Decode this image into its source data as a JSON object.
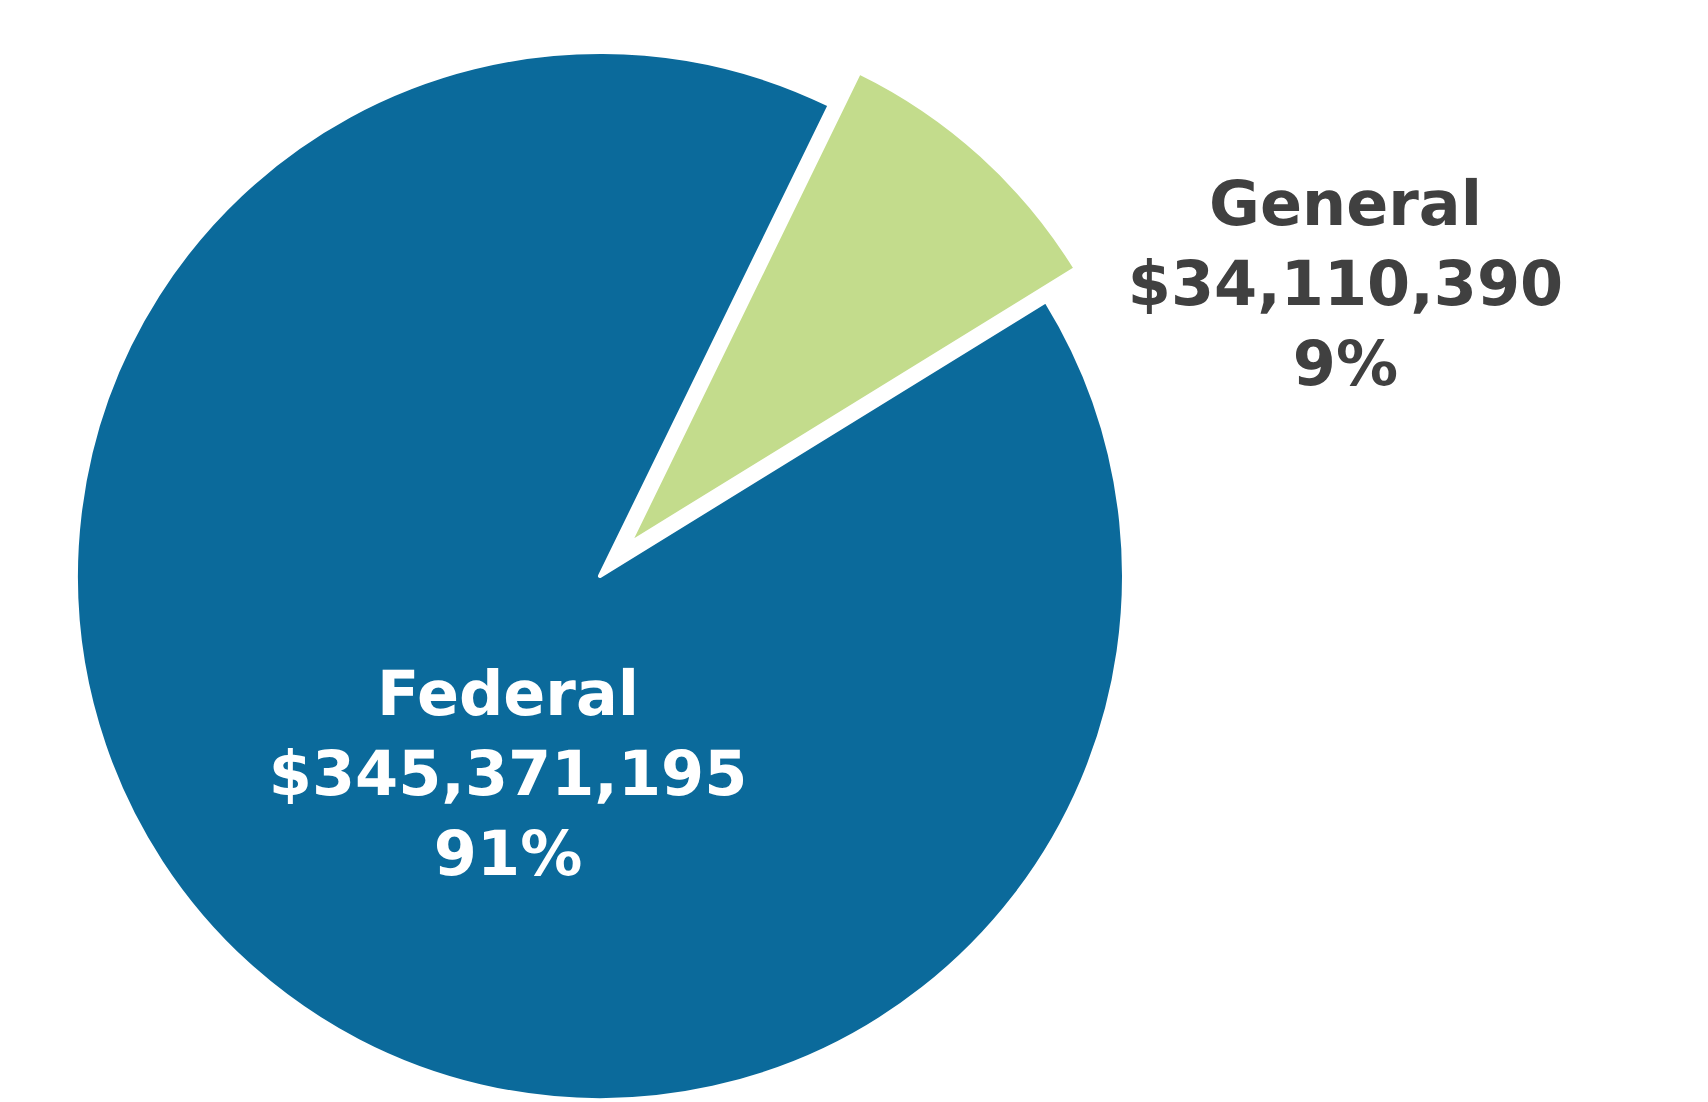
{
  "chart_data": {
    "type": "pie",
    "categories": [
      "General",
      "Federal"
    ],
    "values": [
      34110390,
      345371195
    ],
    "colors": [
      "#c3dc8c",
      "#0b6a9b"
    ],
    "value_labels": [
      "$34,110,390\n9%",
      "$345,371,195\n91%"
    ],
    "legend": false
  }
}
